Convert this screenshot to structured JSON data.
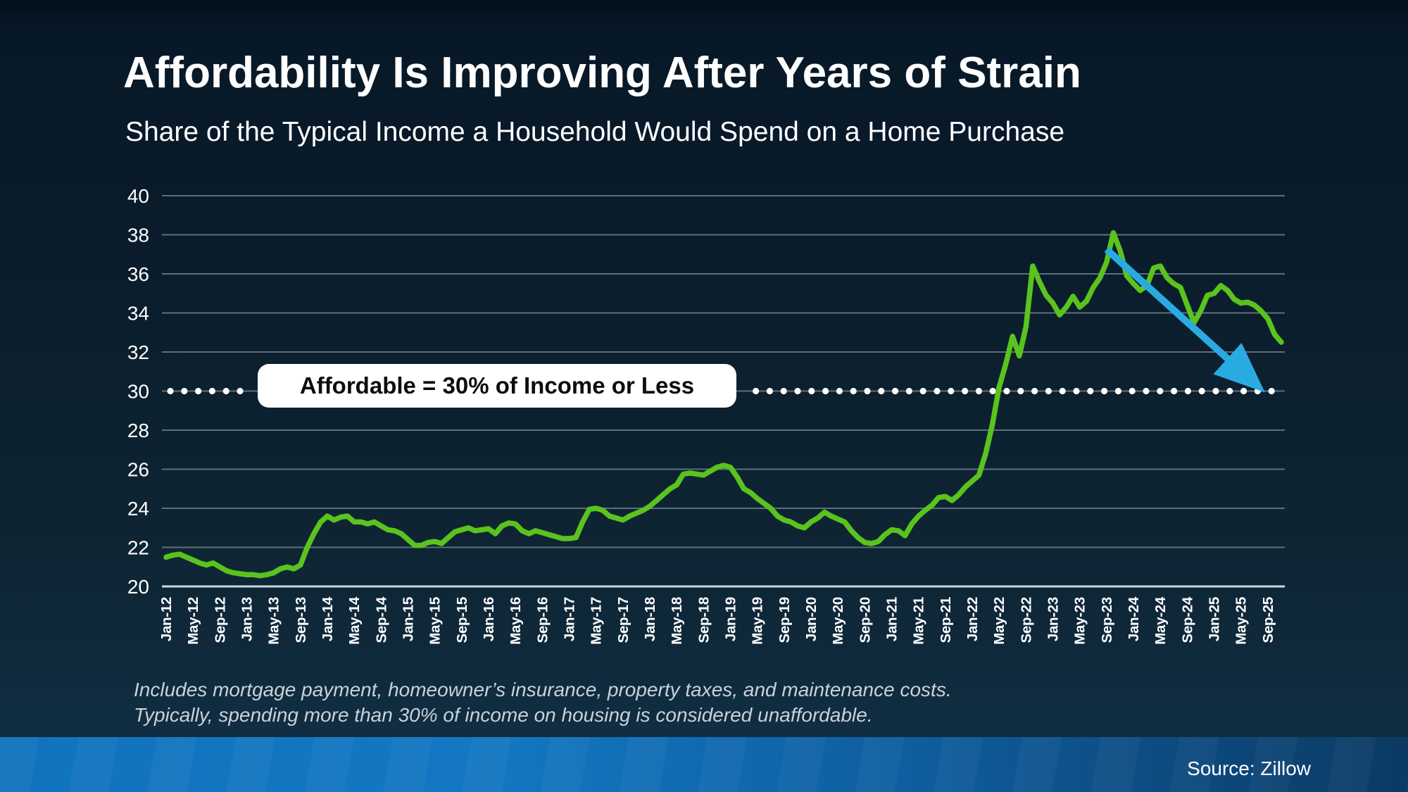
{
  "header": {
    "title": "Affordability Is Improving After Years of Strain",
    "subtitle": "Share of the Typical Income a Household Would Spend on a Home Purchase"
  },
  "chart_data": {
    "type": "line",
    "title": "Affordability Is Improving After Years of Strain",
    "subtitle": "Share of the Typical Income a Household Would Spend on a Home Purchase",
    "ylim": [
      20,
      40
    ],
    "y_tick_step": 2,
    "y_tick_labels": [
      "40",
      "38",
      "36",
      "34",
      "32",
      "30",
      "28",
      "26",
      "24",
      "22",
      "20"
    ],
    "x_tick_labels": [
      "Jan-12",
      "May-12",
      "Sep-12",
      "Jan-13",
      "May-13",
      "Sep-13",
      "Jan-14",
      "May-14",
      "Sep-14",
      "Jan-15",
      "May-15",
      "Sep-15",
      "Jan-16",
      "May-16",
      "Sep-16",
      "Jan-17",
      "May-17",
      "Sep-17",
      "Jan-18",
      "May-18",
      "Sep-18",
      "Jan-19",
      "May-19",
      "Sep-19",
      "Jan-20",
      "May-20",
      "Sep-20",
      "Jan-21",
      "May-21",
      "Sep-21",
      "Jan-22",
      "May-22",
      "Sep-22",
      "Jan-23",
      "May-23",
      "Sep-23",
      "Jan-24",
      "May-24",
      "Sep-24",
      "Jan-25",
      "May-25",
      "Sep-25"
    ],
    "x_tick_every_months": 4,
    "grid": true,
    "series": [
      {
        "name": "share-of-income",
        "color": "#5ac31e",
        "start_month": "Jan-2012",
        "end_month": "Nov-2025",
        "values": [
          21.5,
          21.6,
          21.65,
          21.5,
          21.35,
          21.2,
          21.1,
          21.2,
          21.0,
          20.8,
          20.7,
          20.65,
          20.6,
          20.6,
          20.55,
          20.6,
          20.7,
          20.9,
          21.0,
          20.9,
          21.1,
          22.0,
          22.7,
          23.3,
          23.6,
          23.4,
          23.55,
          23.6,
          23.3,
          23.3,
          23.2,
          23.3,
          23.1,
          22.9,
          22.85,
          22.7,
          22.4,
          22.1,
          22.1,
          22.25,
          22.3,
          22.2,
          22.5,
          22.8,
          22.9,
          23.0,
          22.85,
          22.9,
          22.95,
          22.7,
          23.1,
          23.25,
          23.2,
          22.85,
          22.7,
          22.85,
          22.75,
          22.65,
          22.55,
          22.45,
          22.45,
          22.5,
          23.3,
          23.95,
          24.0,
          23.9,
          23.6,
          23.5,
          23.4,
          23.6,
          23.75,
          23.9,
          24.1,
          24.4,
          24.7,
          25.0,
          25.2,
          25.75,
          25.8,
          25.75,
          25.7,
          25.9,
          26.1,
          26.2,
          26.1,
          25.6,
          25.0,
          24.8,
          24.5,
          24.25,
          24.0,
          23.6,
          23.4,
          23.3,
          23.1,
          23.0,
          23.3,
          23.5,
          23.8,
          23.6,
          23.45,
          23.3,
          22.85,
          22.5,
          22.25,
          22.2,
          22.3,
          22.65,
          22.9,
          22.85,
          22.6,
          23.2,
          23.6,
          23.9,
          24.15,
          24.55,
          24.6,
          24.4,
          24.7,
          25.1,
          25.4,
          25.7,
          26.8,
          28.3,
          30.2,
          31.4,
          32.8,
          31.8,
          33.3,
          36.4,
          35.6,
          34.9,
          34.5,
          33.9,
          34.3,
          34.85,
          34.3,
          34.6,
          35.3,
          35.8,
          36.6,
          38.1,
          37.2,
          35.9,
          35.5,
          35.15,
          35.4,
          36.3,
          36.4,
          35.8,
          35.5,
          35.3,
          34.4,
          33.5,
          34.1,
          34.9,
          35.0,
          35.4,
          35.15,
          34.7,
          34.5,
          34.55,
          34.4,
          34.1,
          33.7,
          32.9,
          32.5
        ]
      }
    ],
    "threshold": {
      "value": 30,
      "label": "Affordable = 30% of Income or Less",
      "dot_color": "#ffffff"
    },
    "trend_arrow": {
      "color": "#29abe2",
      "from": {
        "month_index": 140,
        "value": 37.25
      },
      "to": {
        "month_index": 166,
        "value": 31.35
      }
    },
    "colors": {
      "grid": "#5f6f7a",
      "axis": "#cfd9de",
      "tick_text": "#ffffff"
    }
  },
  "footnotes": {
    "line1": "Includes mortgage payment, homeowner’s insurance, property taxes, and maintenance costs.",
    "line2": "Typically, spending more than 30% of income on housing is considered unaffordable."
  },
  "footer": {
    "source": "Source: Zillow"
  }
}
